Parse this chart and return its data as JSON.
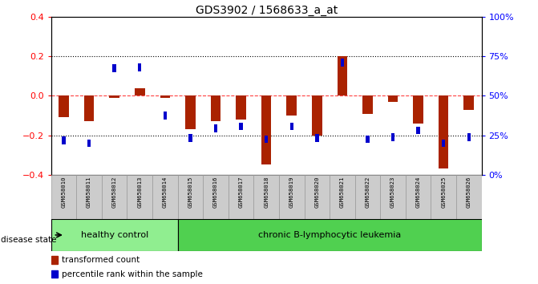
{
  "title": "GDS3902 / 1568633_a_at",
  "samples": [
    "GSM658010",
    "GSM658011",
    "GSM658012",
    "GSM658013",
    "GSM658014",
    "GSM658015",
    "GSM658016",
    "GSM658017",
    "GSM658018",
    "GSM658019",
    "GSM658020",
    "GSM658021",
    "GSM658022",
    "GSM658023",
    "GSM658024",
    "GSM658025",
    "GSM658026"
  ],
  "red_values": [
    -0.11,
    -0.13,
    -0.01,
    0.04,
    -0.01,
    -0.17,
    -0.13,
    -0.12,
    -0.35,
    -0.1,
    -0.2,
    0.2,
    -0.09,
    -0.03,
    -0.14,
    -0.37,
    -0.07
  ],
  "blue_values": [
    -0.225,
    -0.24,
    0.14,
    0.145,
    -0.1,
    -0.215,
    -0.165,
    -0.155,
    -0.22,
    -0.155,
    -0.215,
    0.17,
    -0.22,
    -0.21,
    -0.175,
    -0.24,
    -0.21
  ],
  "group_labels": [
    "healthy control",
    "chronic B-lymphocytic leukemia"
  ],
  "group_counts": [
    5,
    12
  ],
  "group_color_healthy": "#90EE90",
  "group_color_leukemia": "#50D050",
  "bar_color_red": "#AA2200",
  "bar_color_blue": "#0000CC",
  "ylim": [
    -0.4,
    0.4
  ],
  "yticks_red": [
    -0.4,
    -0.2,
    0.0,
    0.2,
    0.4
  ],
  "yticks_blue_pcts": [
    0,
    25,
    50,
    75,
    100
  ],
  "disease_state_label": "disease state",
  "legend_items": [
    "transformed count",
    "percentile rank within the sample"
  ],
  "sample_label_bg": "#CCCCCC",
  "background_color": "#ffffff"
}
